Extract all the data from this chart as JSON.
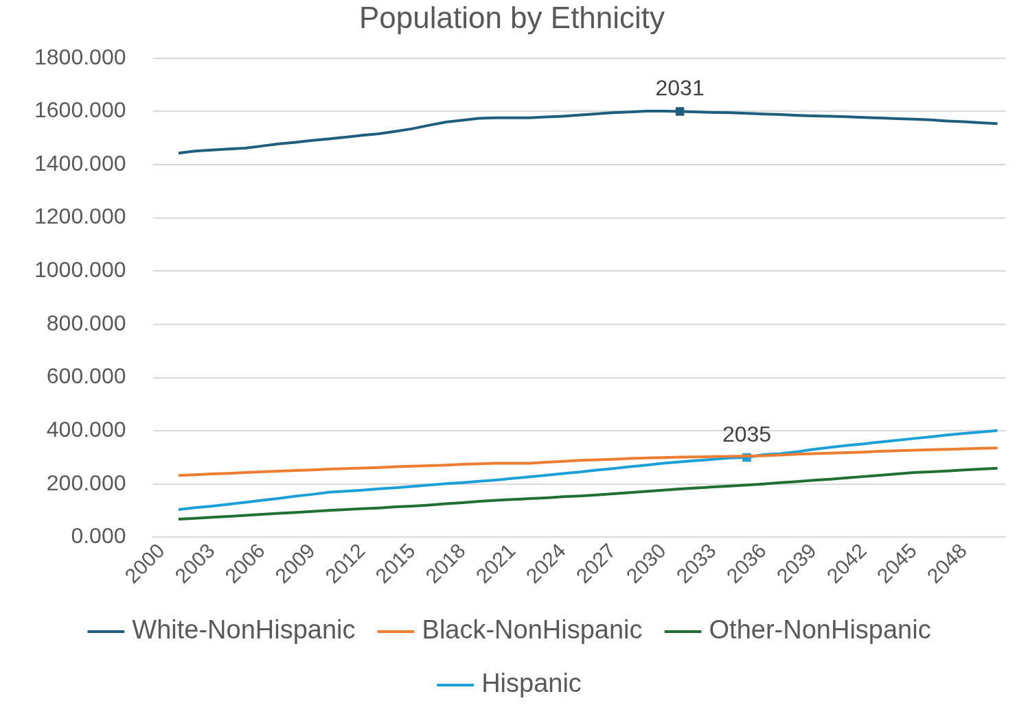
{
  "chart_data": {
    "type": "line",
    "title": "Population by Ethnicity",
    "categories": [
      "2000",
      null,
      null,
      "2003",
      null,
      null,
      "2006",
      null,
      null,
      "2009",
      null,
      null,
      "2012",
      null,
      null,
      "2015",
      null,
      null,
      "2018",
      null,
      null,
      "2021",
      null,
      null,
      "2024",
      null,
      null,
      "2027",
      null,
      null,
      "2030",
      null,
      null,
      "2033",
      null,
      null,
      "2036",
      null,
      null,
      "2039",
      null,
      null,
      "2042",
      null,
      null,
      "2045",
      null,
      null,
      "2048",
      null,
      null
    ],
    "ylim": [
      0,
      1800
    ],
    "yticks": [
      {
        "value": 0,
        "label": "0.000"
      },
      {
        "value": 200,
        "label": "200.000"
      },
      {
        "value": 400,
        "label": "400.000"
      },
      {
        "value": 600,
        "label": "600.000"
      },
      {
        "value": 800,
        "label": "800.000"
      },
      {
        "value": 1000,
        "label": "1000.000"
      },
      {
        "value": 1200,
        "label": "1200.000"
      },
      {
        "value": 1400,
        "label": "1400.000"
      },
      {
        "value": 1600,
        "label": "1600.000"
      },
      {
        "value": 1800,
        "label": "1800.000"
      }
    ],
    "grid": "y",
    "legend": "bottom",
    "annotations": [
      {
        "text": "2031",
        "y": 1600
      },
      {
        "text": "2035",
        "y": 300
      }
    ],
    "series": [
      {
        "name": "White-NonHispanic",
        "color": "#1f5f7e",
        "values": [
          null,
          1443,
          1451,
          1455,
          1459,
          1462,
          1470,
          1478,
          1484,
          1491,
          1497,
          1503,
          1510,
          1516,
          1525,
          1535,
          1548,
          1560,
          1567,
          1574,
          1576,
          1576,
          1576,
          1579,
          1582,
          1586,
          1591,
          1595,
          1598,
          1601,
          1601,
          1600,
          1598,
          1596,
          1595,
          1593,
          1590,
          1588,
          1585,
          1583,
          1582,
          1580,
          1577,
          1575,
          1573,
          1571,
          1568,
          1564,
          1561,
          1557,
          1554
        ]
      },
      {
        "name": "Black-NonHispanic",
        "color": "#ed7d31",
        "values": [
          null,
          232,
          235,
          238,
          240,
          243,
          246,
          248,
          251,
          253,
          256,
          258,
          260,
          262,
          265,
          267,
          269,
          271,
          274,
          276,
          278,
          278,
          278,
          282,
          285,
          289,
          291,
          293,
          296,
          298,
          299,
          301,
          302,
          303,
          304,
          305,
          306,
          309,
          312,
          314,
          316,
          318,
          320,
          323,
          325,
          327,
          329,
          330,
          332,
          334,
          335
        ]
      },
      {
        "name": "Other-NonHispanic",
        "color": "#217033",
        "values": [
          null,
          68,
          71,
          75,
          78,
          82,
          86,
          90,
          93,
          97,
          101,
          104,
          107,
          110,
          114,
          117,
          121,
          126,
          130,
          135,
          139,
          142,
          145,
          148,
          152,
          155,
          159,
          163,
          168,
          172,
          177,
          181,
          185,
          189,
          192,
          196,
          200,
          205,
          209,
          214,
          218,
          223,
          228,
          233,
          238,
          243,
          246,
          249,
          253,
          256,
          259
        ]
      },
      {
        "name": "Hispanic",
        "color": "#1ba1d8",
        "values": [
          null,
          104,
          111,
          117,
          124,
          131,
          139,
          146,
          154,
          161,
          169,
          173,
          177,
          182,
          186,
          191,
          196,
          201,
          205,
          210,
          215,
          221,
          227,
          233,
          239,
          245,
          252,
          258,
          265,
          271,
          278,
          283,
          288,
          293,
          298,
          300,
          310,
          314,
          321,
          330,
          338,
          345,
          351,
          358,
          364,
          371,
          377,
          384,
          390,
          395,
          401
        ]
      }
    ]
  }
}
